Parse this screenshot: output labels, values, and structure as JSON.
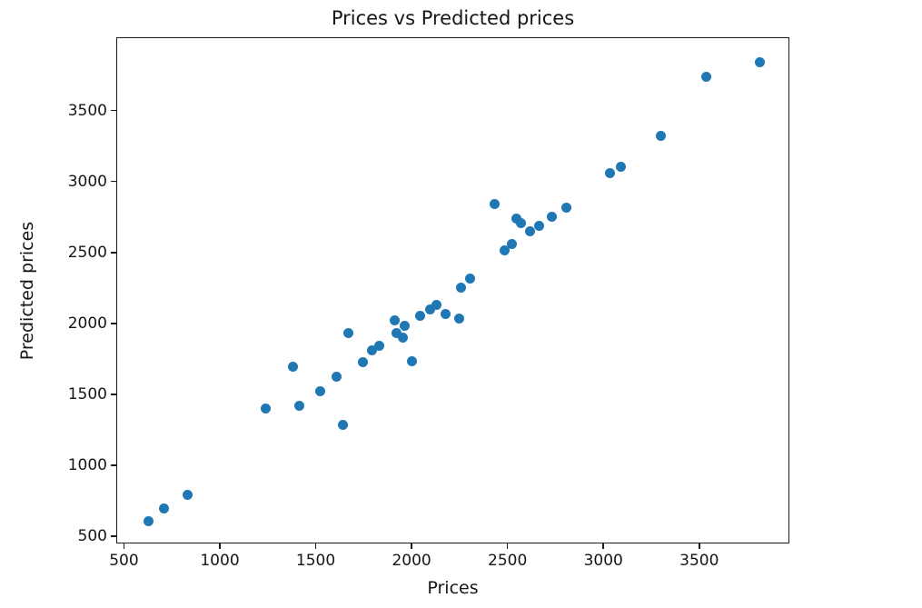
{
  "figure": {
    "title": "Prices vs Predicted prices",
    "xlabel": "Prices",
    "ylabel": "Predicted prices"
  },
  "chart_data": {
    "type": "scatter",
    "title": "Prices vs Predicted prices",
    "xlabel": "Prices",
    "ylabel": "Predicted prices",
    "xlim": [
      460,
      3970
    ],
    "ylim": [
      448,
      4017
    ],
    "x_ticks": [
      500,
      1000,
      1500,
      2000,
      2500,
      3000,
      3500
    ],
    "y_ticks": [
      500,
      1000,
      1500,
      2000,
      2500,
      3000,
      3500
    ],
    "grid": false,
    "legend": null,
    "marker_color": "#1f77b4",
    "marker_diameter_px": 11,
    "points": [
      [
        625,
        610
      ],
      [
        703,
        700
      ],
      [
        825,
        800
      ],
      [
        1235,
        1405
      ],
      [
        1375,
        1700
      ],
      [
        1410,
        1425
      ],
      [
        1520,
        1525
      ],
      [
        1605,
        1630
      ],
      [
        1635,
        1290
      ],
      [
        1665,
        1940
      ],
      [
        1740,
        1735
      ],
      [
        1790,
        1815
      ],
      [
        1825,
        1845
      ],
      [
        1905,
        2025
      ],
      [
        1960,
        1990
      ],
      [
        1915,
        1940
      ],
      [
        1950,
        1905
      ],
      [
        1995,
        1740
      ],
      [
        2040,
        2060
      ],
      [
        2090,
        2105
      ],
      [
        2125,
        2135
      ],
      [
        2170,
        2070
      ],
      [
        2245,
        2040
      ],
      [
        2255,
        2260
      ],
      [
        2300,
        2325
      ],
      [
        2430,
        2845
      ],
      [
        2480,
        2520
      ],
      [
        2520,
        2565
      ],
      [
        2540,
        2745
      ],
      [
        2565,
        2710
      ],
      [
        2615,
        2655
      ],
      [
        2660,
        2695
      ],
      [
        2725,
        2755
      ],
      [
        2800,
        2820
      ],
      [
        3030,
        3065
      ],
      [
        3085,
        3110
      ],
      [
        3295,
        3325
      ],
      [
        3530,
        3745
      ],
      [
        3810,
        3850
      ]
    ]
  }
}
